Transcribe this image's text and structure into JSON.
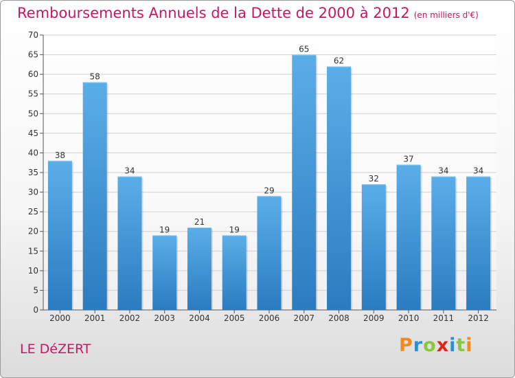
{
  "header": {
    "title": "Remboursements Annuels de la Dette de 2000 à 2012",
    "unit": "(en milliers d'€)"
  },
  "footer": {
    "commune": "LE DéZERT",
    "logo_text": "Proxiti",
    "logo_colors": [
      "#f08a1c",
      "#2e8fd0",
      "#8cc63e",
      "#e2231a",
      "#2e8fd0",
      "#8cc63e",
      "#f08a1c"
    ]
  },
  "colors": {
    "bar_light": "#5aaee8",
    "bar_dark": "#2a7cc0",
    "accent": "#c8175e",
    "grid": "#d0d0d0"
  },
  "chart_data": {
    "type": "bar",
    "title": "Remboursements Annuels de la Dette de 2000 à 2012",
    "subtitle": "(en milliers d'€)",
    "xlabel": "",
    "ylabel": "",
    "categories": [
      "2000",
      "2001",
      "2002",
      "2003",
      "2004",
      "2005",
      "2006",
      "2007",
      "2008",
      "2009",
      "2010",
      "2011",
      "2012"
    ],
    "values": [
      38,
      58,
      34,
      19,
      21,
      19,
      29,
      65,
      62,
      32,
      37,
      34,
      34
    ],
    "ylim": [
      0,
      70
    ],
    "ytick_step": 5,
    "grid": true,
    "legend": "none"
  }
}
